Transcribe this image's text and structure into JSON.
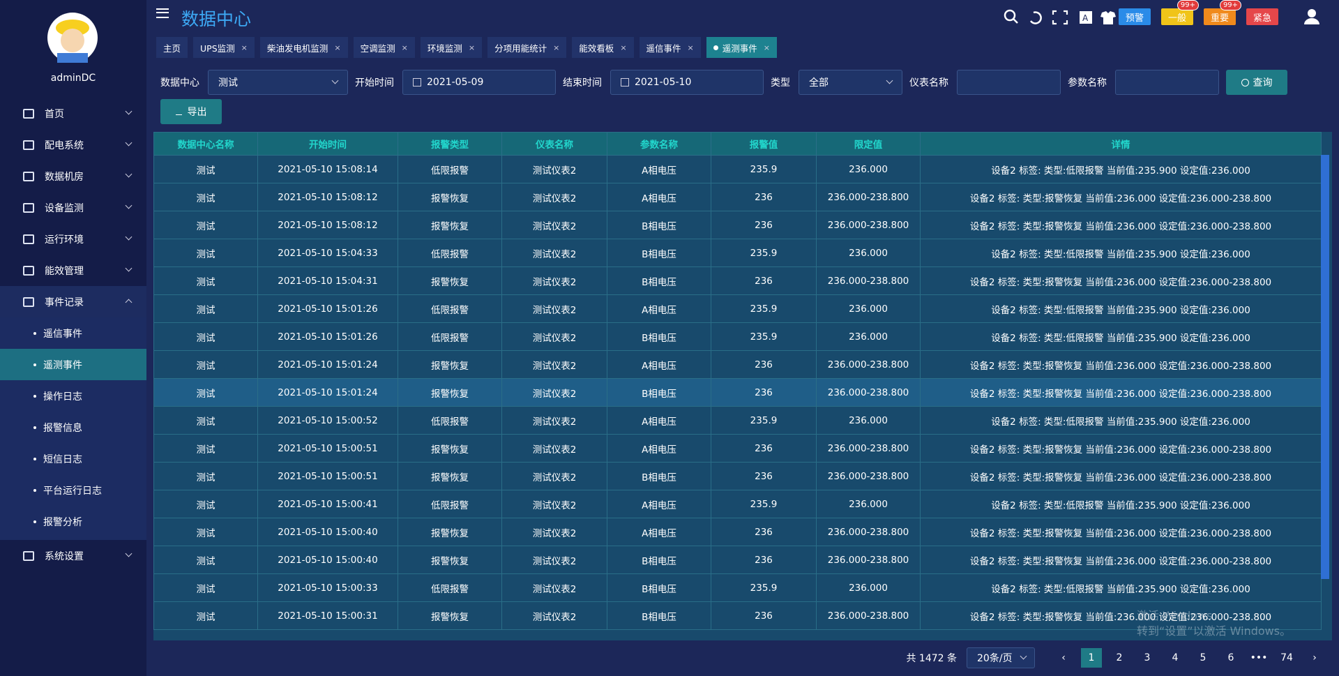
{
  "header": {
    "title": "数据中心",
    "levels": [
      "预警",
      "一般",
      "重要",
      "紧急"
    ],
    "badges": [
      "99+",
      "99+"
    ]
  },
  "user": {
    "name": "adminDC"
  },
  "menu": [
    {
      "label": "首页"
    },
    {
      "label": "配电系统"
    },
    {
      "label": "数据机房"
    },
    {
      "label": "设备监测"
    },
    {
      "label": "运行环境"
    },
    {
      "label": "能效管理"
    },
    {
      "label": "事件记录",
      "children": [
        {
          "label": "遥信事件"
        },
        {
          "label": "遥测事件",
          "active": true
        },
        {
          "label": "操作日志"
        },
        {
          "label": "报警信息"
        },
        {
          "label": "短信日志"
        },
        {
          "label": "平台运行日志"
        },
        {
          "label": "报警分析"
        }
      ]
    },
    {
      "label": "系统设置"
    }
  ],
  "tabs": [
    {
      "label": "主页"
    },
    {
      "label": "UPS监测"
    },
    {
      "label": "柴油发电机监测"
    },
    {
      "label": "空调监测"
    },
    {
      "label": "环境监测"
    },
    {
      "label": "分项用能统计"
    },
    {
      "label": "能效看板"
    },
    {
      "label": "遥信事件"
    },
    {
      "label": "遥测事件",
      "active": true
    }
  ],
  "filters": {
    "datacenter": {
      "label": "数据中心",
      "value": "测试"
    },
    "start": {
      "label": "开始时间",
      "value": "2021-05-09"
    },
    "end": {
      "label": "结束时间",
      "value": "2021-05-10"
    },
    "type": {
      "label": "类型",
      "value": "全部"
    },
    "meter": {
      "label": "仪表名称"
    },
    "param": {
      "label": "参数名称"
    },
    "query": "查询",
    "export": "导出"
  },
  "table": {
    "columns": [
      "数据中心名称",
      "开始时间",
      "报警类型",
      "仪表名称",
      "参数名称",
      "报警值",
      "限定值",
      "详情"
    ],
    "selected_row": 8,
    "rows": [
      [
        "测试",
        "2021-05-10 15:08:14",
        "低限报警",
        "测试仪表2",
        "A相电压",
        "235.9",
        "236.000",
        "设备2 标签: 类型:低限报警 当前值:235.900 设定值:236.000"
      ],
      [
        "测试",
        "2021-05-10 15:08:12",
        "报警恢复",
        "测试仪表2",
        "A相电压",
        "236",
        "236.000-238.800",
        "设备2 标签: 类型:报警恢复 当前值:236.000 设定值:236.000-238.800"
      ],
      [
        "测试",
        "2021-05-10 15:08:12",
        "报警恢复",
        "测试仪表2",
        "B相电压",
        "236",
        "236.000-238.800",
        "设备2 标签: 类型:报警恢复 当前值:236.000 设定值:236.000-238.800"
      ],
      [
        "测试",
        "2021-05-10 15:04:33",
        "低限报警",
        "测试仪表2",
        "B相电压",
        "235.9",
        "236.000",
        "设备2 标签: 类型:低限报警 当前值:235.900 设定值:236.000"
      ],
      [
        "测试",
        "2021-05-10 15:04:31",
        "报警恢复",
        "测试仪表2",
        "B相电压",
        "236",
        "236.000-238.800",
        "设备2 标签: 类型:报警恢复 当前值:236.000 设定值:236.000-238.800"
      ],
      [
        "测试",
        "2021-05-10 15:01:26",
        "低限报警",
        "测试仪表2",
        "A相电压",
        "235.9",
        "236.000",
        "设备2 标签: 类型:低限报警 当前值:235.900 设定值:236.000"
      ],
      [
        "测试",
        "2021-05-10 15:01:26",
        "低限报警",
        "测试仪表2",
        "B相电压",
        "235.9",
        "236.000",
        "设备2 标签: 类型:低限报警 当前值:235.900 设定值:236.000"
      ],
      [
        "测试",
        "2021-05-10 15:01:24",
        "报警恢复",
        "测试仪表2",
        "A相电压",
        "236",
        "236.000-238.800",
        "设备2 标签: 类型:报警恢复 当前值:236.000 设定值:236.000-238.800"
      ],
      [
        "测试",
        "2021-05-10 15:01:24",
        "报警恢复",
        "测试仪表2",
        "B相电压",
        "236",
        "236.000-238.800",
        "设备2 标签: 类型:报警恢复 当前值:236.000 设定值:236.000-238.800"
      ],
      [
        "测试",
        "2021-05-10 15:00:52",
        "低限报警",
        "测试仪表2",
        "A相电压",
        "235.9",
        "236.000",
        "设备2 标签: 类型:低限报警 当前值:235.900 设定值:236.000"
      ],
      [
        "测试",
        "2021-05-10 15:00:51",
        "报警恢复",
        "测试仪表2",
        "A相电压",
        "236",
        "236.000-238.800",
        "设备2 标签: 类型:报警恢复 当前值:236.000 设定值:236.000-238.800"
      ],
      [
        "测试",
        "2021-05-10 15:00:51",
        "报警恢复",
        "测试仪表2",
        "B相电压",
        "236",
        "236.000-238.800",
        "设备2 标签: 类型:报警恢复 当前值:236.000 设定值:236.000-238.800"
      ],
      [
        "测试",
        "2021-05-10 15:00:41",
        "低限报警",
        "测试仪表2",
        "A相电压",
        "235.9",
        "236.000",
        "设备2 标签: 类型:低限报警 当前值:235.900 设定值:236.000"
      ],
      [
        "测试",
        "2021-05-10 15:00:40",
        "报警恢复",
        "测试仪表2",
        "A相电压",
        "236",
        "236.000-238.800",
        "设备2 标签: 类型:报警恢复 当前值:236.000 设定值:236.000-238.800"
      ],
      [
        "测试",
        "2021-05-10 15:00:40",
        "报警恢复",
        "测试仪表2",
        "B相电压",
        "236",
        "236.000-238.800",
        "设备2 标签: 类型:报警恢复 当前值:236.000 设定值:236.000-238.800"
      ],
      [
        "测试",
        "2021-05-10 15:00:33",
        "低限报警",
        "测试仪表2",
        "B相电压",
        "235.9",
        "236.000",
        "设备2 标签: 类型:低限报警 当前值:235.900 设定值:236.000"
      ],
      [
        "测试",
        "2021-05-10 15:00:31",
        "报警恢复",
        "测试仪表2",
        "B相电压",
        "236",
        "236.000-238.800",
        "设备2 标签: 类型:报警恢复 当前值:236.000 设定值:236.000-238.800"
      ]
    ]
  },
  "pagination": {
    "total": "共 1472 条",
    "page_size": "20条/页",
    "pages": [
      "1",
      "2",
      "3",
      "4",
      "5",
      "6",
      "•••",
      "74"
    ],
    "current": 0
  },
  "watermark": [
    "激活 Windows",
    "转到“设置”以激活 Windows。"
  ]
}
